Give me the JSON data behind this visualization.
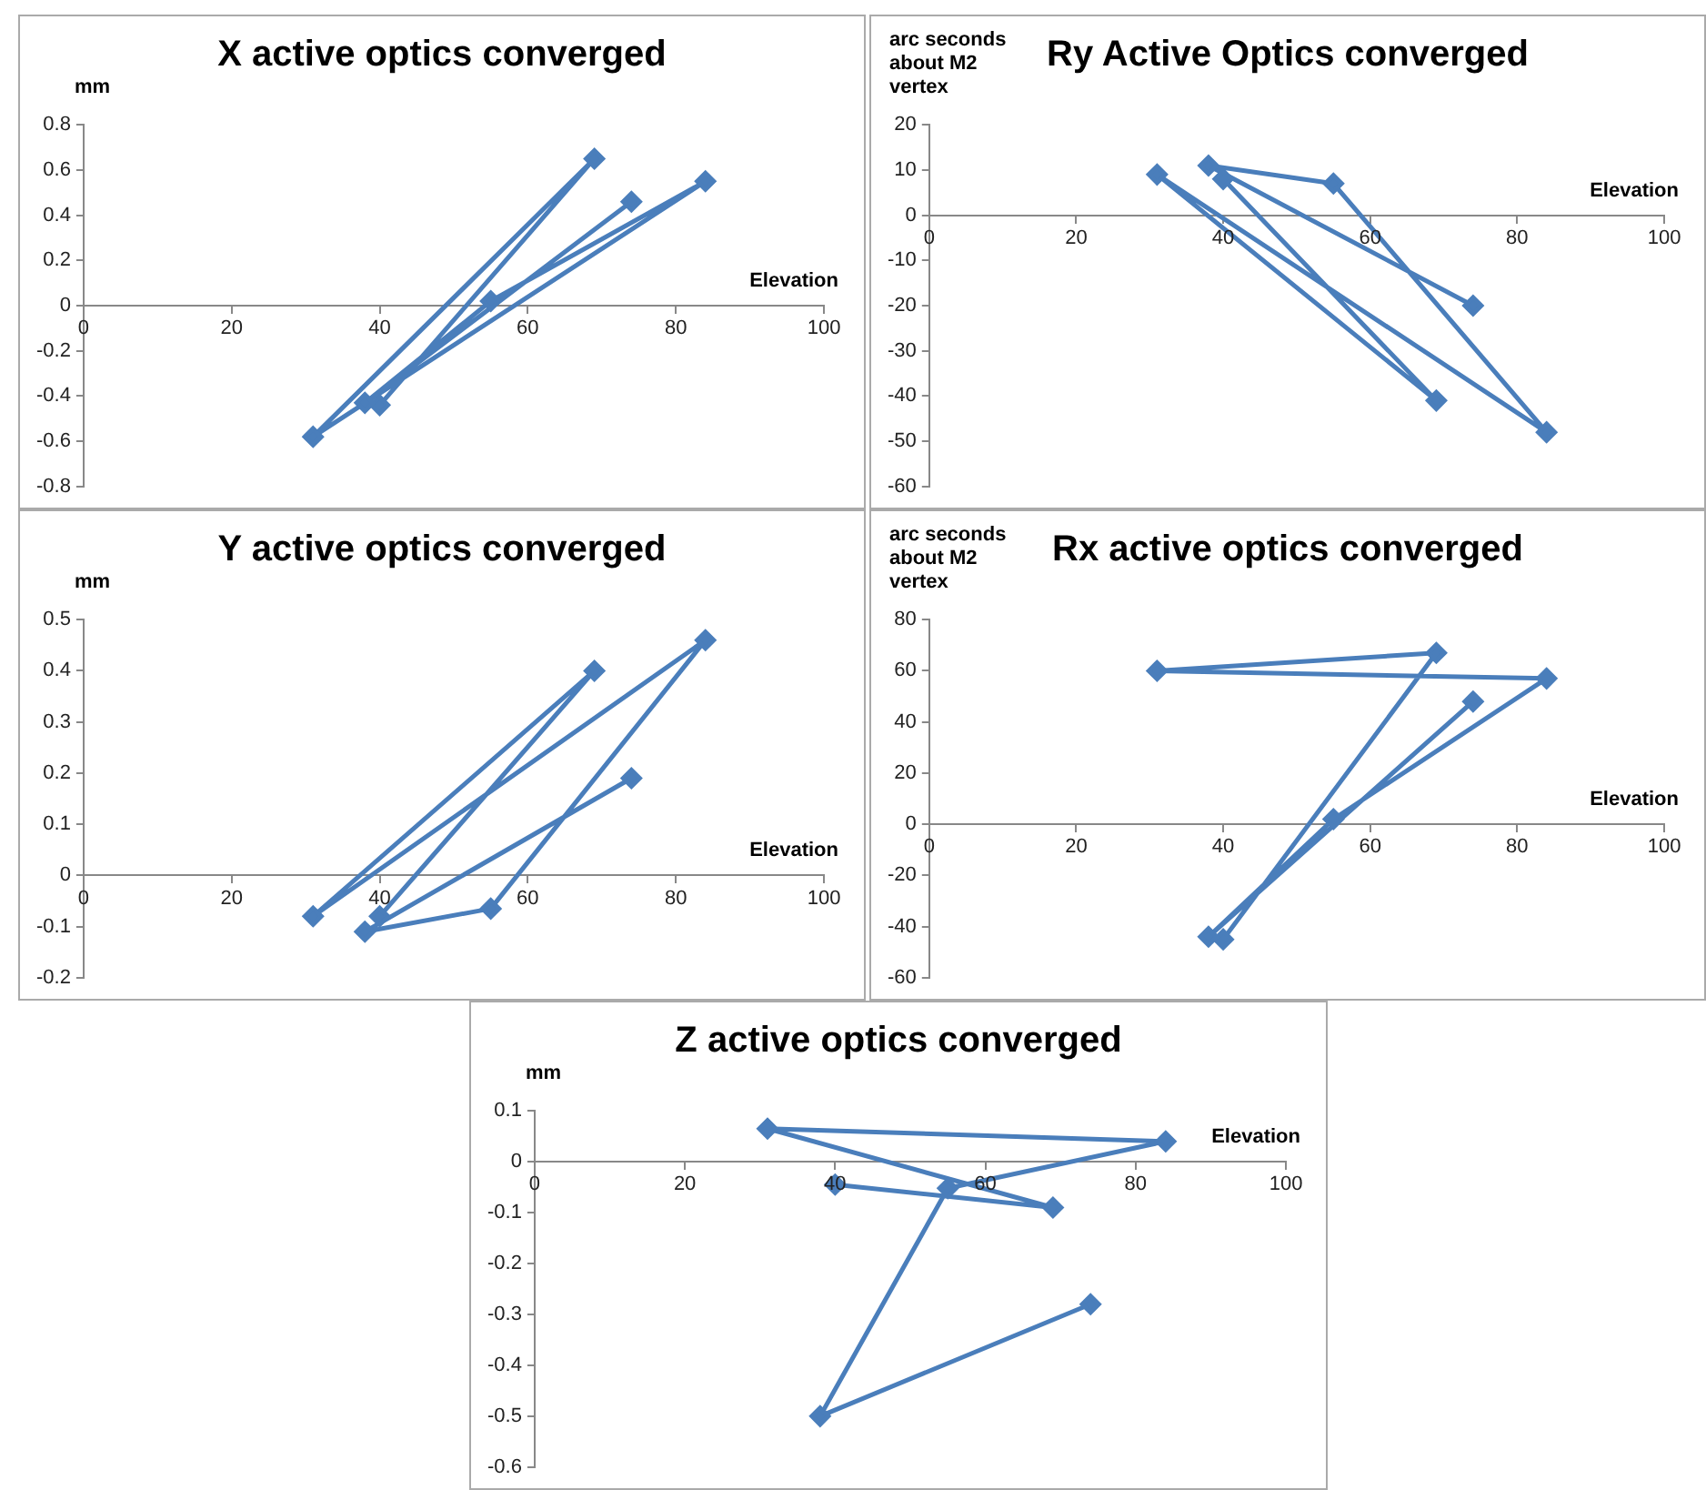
{
  "chart_data": [
    {
      "type": "line",
      "title": "X active optics converged",
      "ylabel": "mm",
      "xlabel": "Elevation",
      "x": [
        40,
        69,
        31,
        84,
        55,
        38,
        74
      ],
      "series": [
        {
          "color": "#4a7ebb",
          "values": [
            -0.44,
            0.65,
            -0.58,
            0.55,
            0.02,
            -0.43,
            0.46
          ]
        }
      ],
      "xlim": [
        0,
        100
      ],
      "xticks": [
        0,
        20,
        40,
        60,
        80,
        100
      ],
      "ylim": [
        -0.8,
        0.8
      ],
      "yticks": [
        -0.8,
        -0.6,
        -0.4,
        -0.2,
        0,
        0.2,
        0.4,
        0.6,
        0.8
      ],
      "marker": "diamond",
      "grid": false,
      "legend": false
    },
    {
      "type": "line",
      "title": "Ry Active Optics converged",
      "ylabel": "arc seconds about M2 vertex",
      "xlabel": "Elevation",
      "x": [
        40,
        69,
        31,
        84,
        55,
        38,
        74
      ],
      "series": [
        {
          "color": "#4a7ebb",
          "values": [
            8,
            -41,
            9,
            -48,
            7,
            11,
            -20
          ]
        }
      ],
      "xlim": [
        0,
        100
      ],
      "xticks": [
        0,
        20,
        40,
        60,
        80,
        100
      ],
      "ylim": [
        -60,
        20
      ],
      "yticks": [
        -60,
        -50,
        -40,
        -30,
        -20,
        -10,
        0,
        10,
        20
      ],
      "marker": "diamond",
      "grid": false,
      "legend": false
    },
    {
      "type": "line",
      "title": "Y active optics converged",
      "ylabel": "mm",
      "xlabel": "Elevation",
      "x": [
        40,
        69,
        31,
        84,
        55,
        38,
        74
      ],
      "series": [
        {
          "color": "#4a7ebb",
          "values": [
            -0.08,
            0.4,
            -0.08,
            0.46,
            -0.065,
            -0.11,
            0.19
          ]
        }
      ],
      "xlim": [
        0,
        100
      ],
      "xticks": [
        0,
        20,
        40,
        60,
        80,
        100
      ],
      "ylim": [
        -0.2,
        0.5
      ],
      "yticks": [
        -0.2,
        -0.1,
        0,
        0.1,
        0.2,
        0.3,
        0.4,
        0.5
      ],
      "marker": "diamond",
      "grid": false,
      "legend": false
    },
    {
      "type": "line",
      "title": "Rx active optics converged",
      "ylabel": "arc seconds about M2 vertex",
      "xlabel": "Elevation",
      "x": [
        40,
        69,
        31,
        84,
        55,
        38,
        74
      ],
      "series": [
        {
          "color": "#4a7ebb",
          "values": [
            -45,
            67,
            60,
            57,
            2,
            -44,
            48
          ]
        }
      ],
      "xlim": [
        0,
        100
      ],
      "xticks": [
        0,
        20,
        40,
        60,
        80,
        100
      ],
      "ylim": [
        -60,
        80
      ],
      "yticks": [
        -60,
        -40,
        -20,
        0,
        20,
        40,
        60,
        80
      ],
      "marker": "diamond",
      "grid": false,
      "legend": false
    },
    {
      "type": "line",
      "title": "Z active optics converged",
      "ylabel": "mm",
      "xlabel": "Elevation",
      "x": [
        40,
        69,
        31,
        84,
        55,
        38,
        74
      ],
      "series": [
        {
          "color": "#4a7ebb",
          "values": [
            -0.045,
            -0.09,
            0.065,
            0.04,
            -0.052,
            -0.5,
            -0.28
          ]
        }
      ],
      "xlim": [
        0,
        100
      ],
      "xticks": [
        0,
        20,
        40,
        60,
        80,
        100
      ],
      "ylim": [
        -0.6,
        0.1
      ],
      "yticks": [
        -0.6,
        -0.5,
        -0.4,
        -0.3,
        -0.2,
        -0.1,
        0,
        0.1
      ],
      "marker": "diamond",
      "grid": false,
      "legend": false
    }
  ]
}
